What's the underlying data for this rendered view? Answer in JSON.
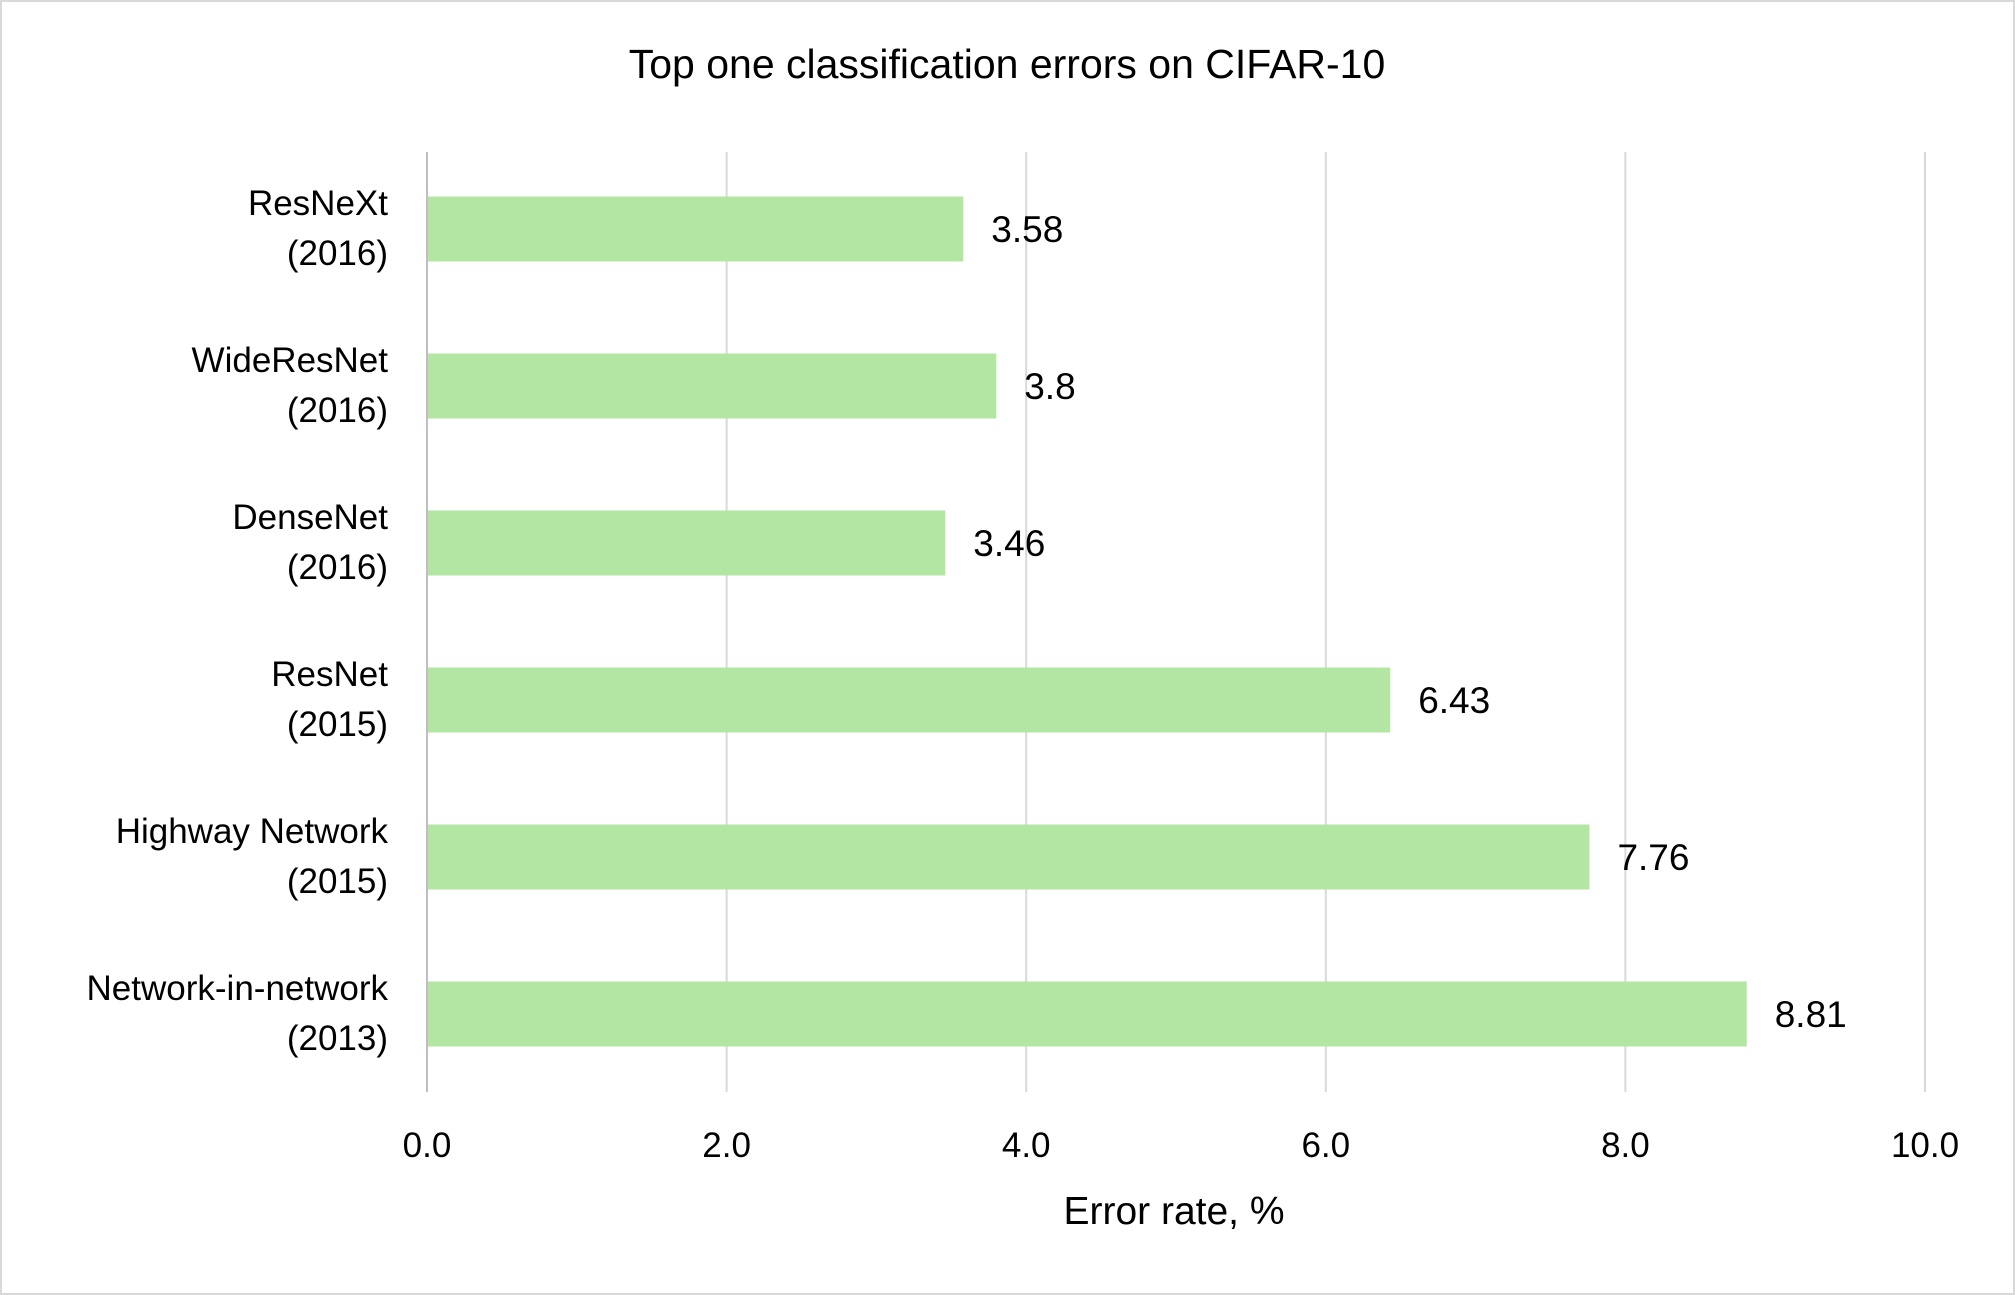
{
  "chart_data": {
    "type": "bar",
    "orientation": "horizontal",
    "title": "Top one classification errors on CIFAR-10",
    "xlabel": "Error rate, %",
    "ylabel": "",
    "categories": [
      [
        "ResNeXt",
        "(2016)"
      ],
      [
        "WideResNet",
        "(2016)"
      ],
      [
        "DenseNet",
        "(2016)"
      ],
      [
        "ResNet",
        "(2015)"
      ],
      [
        "Highway Network",
        "(2015)"
      ],
      [
        "Network-in-network",
        "(2013)"
      ]
    ],
    "values": [
      3.58,
      3.8,
      3.46,
      6.43,
      7.76,
      8.81
    ],
    "value_labels": [
      "3.58",
      "3.8",
      "3.46",
      "6.43",
      "7.76",
      "8.81"
    ],
    "xlim": [
      0,
      10
    ],
    "x_ticks": [
      0,
      2,
      4,
      6,
      8,
      10
    ],
    "x_tick_labels": [
      "0.0",
      "2.0",
      "4.0",
      "6.0",
      "8.0",
      "10.0"
    ],
    "grid": true,
    "legend": false,
    "colors": {
      "bar": "#b3e5a3",
      "grid": "#d9d9d9",
      "axis": "#bfbfbf",
      "text": "#000000",
      "border": "#d9d9d9"
    }
  }
}
